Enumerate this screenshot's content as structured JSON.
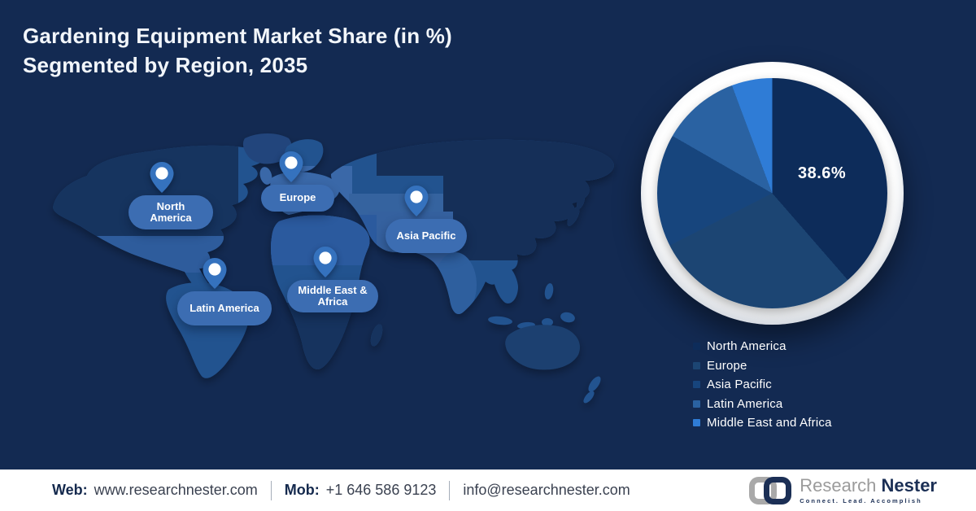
{
  "title": {
    "line1": "Gardening Equipment Market Share (in %)",
    "line2": "Segmented by Region, 2035"
  },
  "map": {
    "regions": [
      {
        "label": "North America"
      },
      {
        "label": "Europe"
      },
      {
        "label": "Asia Pacific"
      },
      {
        "label": "Latin America"
      },
      {
        "label": "Middle East & Africa"
      }
    ]
  },
  "chart_data": {
    "type": "pie",
    "title": "Gardening Equipment Market Share (in %) Segmented by Region, 2035",
    "categories": [
      "North America",
      "Europe",
      "Asia Pacific",
      "Latin America",
      "Middle East and Africa"
    ],
    "values": [
      38.6,
      28.9,
      15.8,
      11.0,
      5.7
    ],
    "labeled_value": "38.6%",
    "labeled_category": "North America",
    "colors": [
      "#0D2C5A",
      "#1C4573",
      "#17457D",
      "#2A62A2",
      "#2F7CD6"
    ],
    "start_angle_deg": 0,
    "direction": "clockwise",
    "legend_position": "bottom-right"
  },
  "legend": {
    "items": [
      {
        "label": "North America",
        "color": "#0D2C5A"
      },
      {
        "label": "Europe",
        "color": "#1C4573"
      },
      {
        "label": "Asia Pacific",
        "color": "#17457D"
      },
      {
        "label": "Latin America",
        "color": "#2A62A2"
      },
      {
        "label": "Middle East and Africa",
        "color": "#2F7CD6"
      }
    ]
  },
  "footer": {
    "web_label": "Web:",
    "web_value": "www.researchnester.com",
    "mob_label": "Mob:",
    "mob_value": "+1 646 586 9123",
    "email": "info@researchnester.com"
  },
  "logo": {
    "name_part1": "Research",
    "name_part2": "Nester",
    "tagline": "Connect. Lead. Accomplish"
  }
}
